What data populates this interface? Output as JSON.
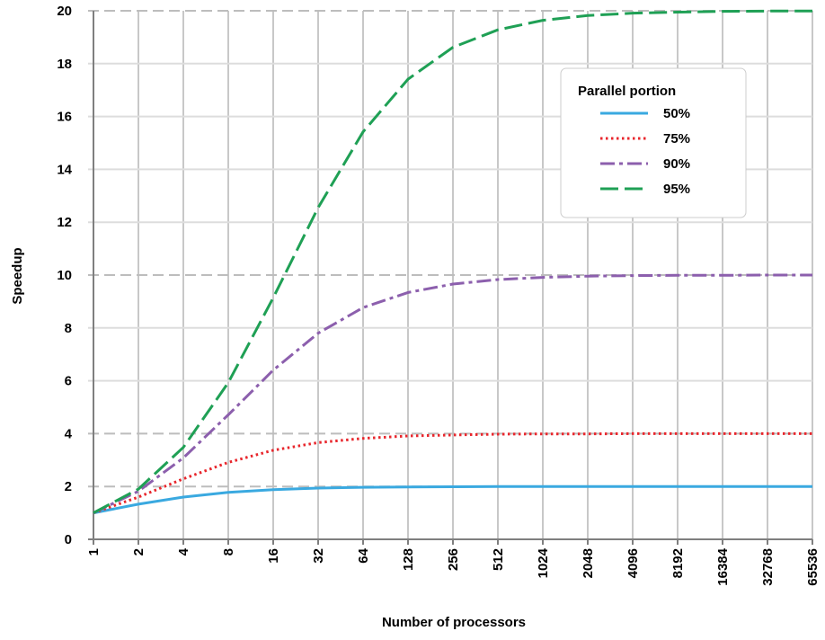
{
  "chart_data": {
    "type": "line",
    "xlabel": "Number of processors",
    "ylabel": "Speedup",
    "x_scale": "log2",
    "x": [
      1,
      2,
      4,
      8,
      16,
      32,
      64,
      128,
      256,
      512,
      1024,
      2048,
      4096,
      8192,
      16384,
      32768,
      65536
    ],
    "x_tick_labels": [
      "1",
      "2",
      "4",
      "8",
      "16",
      "32",
      "64",
      "128",
      "256",
      "512",
      "1024",
      "2048",
      "4096",
      "8192",
      "16384",
      "32768",
      "65536"
    ],
    "ylim": [
      0,
      20
    ],
    "y_ticks": [
      0,
      2,
      4,
      6,
      8,
      10,
      12,
      14,
      16,
      18,
      20
    ],
    "y_tick_labels": [
      "0",
      "2",
      "4",
      "6",
      "8",
      "10",
      "12",
      "14",
      "16",
      "18",
      "20"
    ],
    "grid": true,
    "legend": {
      "title": "Parallel portion",
      "placement": "top-right"
    },
    "series": [
      {
        "name": "50%",
        "color": "#3aa9e0",
        "dash": "solid",
        "values": [
          1.0,
          1.33,
          1.6,
          1.78,
          1.88,
          1.94,
          1.97,
          1.98,
          1.99,
          2.0,
          2.0,
          2.0,
          2.0,
          2.0,
          2.0,
          2.0,
          2.0
        ]
      },
      {
        "name": "75%",
        "color": "#e8262c",
        "dash": "dotted",
        "values": [
          1.0,
          1.6,
          2.29,
          2.91,
          3.37,
          3.66,
          3.82,
          3.91,
          3.95,
          3.98,
          3.99,
          3.99,
          4.0,
          4.0,
          4.0,
          4.0,
          4.0
        ]
      },
      {
        "name": "90%",
        "color": "#8c5fad",
        "dash": "dashdot",
        "values": [
          1.0,
          1.82,
          3.08,
          4.71,
          6.4,
          7.8,
          8.77,
          9.34,
          9.66,
          9.83,
          9.91,
          9.96,
          9.98,
          9.99,
          9.99,
          10.0,
          10.0
        ]
      },
      {
        "name": "95%",
        "color": "#1fa055",
        "dash": "dashed",
        "values": [
          1.0,
          1.9,
          3.48,
          5.93,
          9.14,
          12.55,
          15.42,
          17.41,
          18.62,
          19.28,
          19.64,
          19.82,
          19.91,
          19.95,
          19.98,
          19.99,
          19.99
        ]
      }
    ]
  }
}
